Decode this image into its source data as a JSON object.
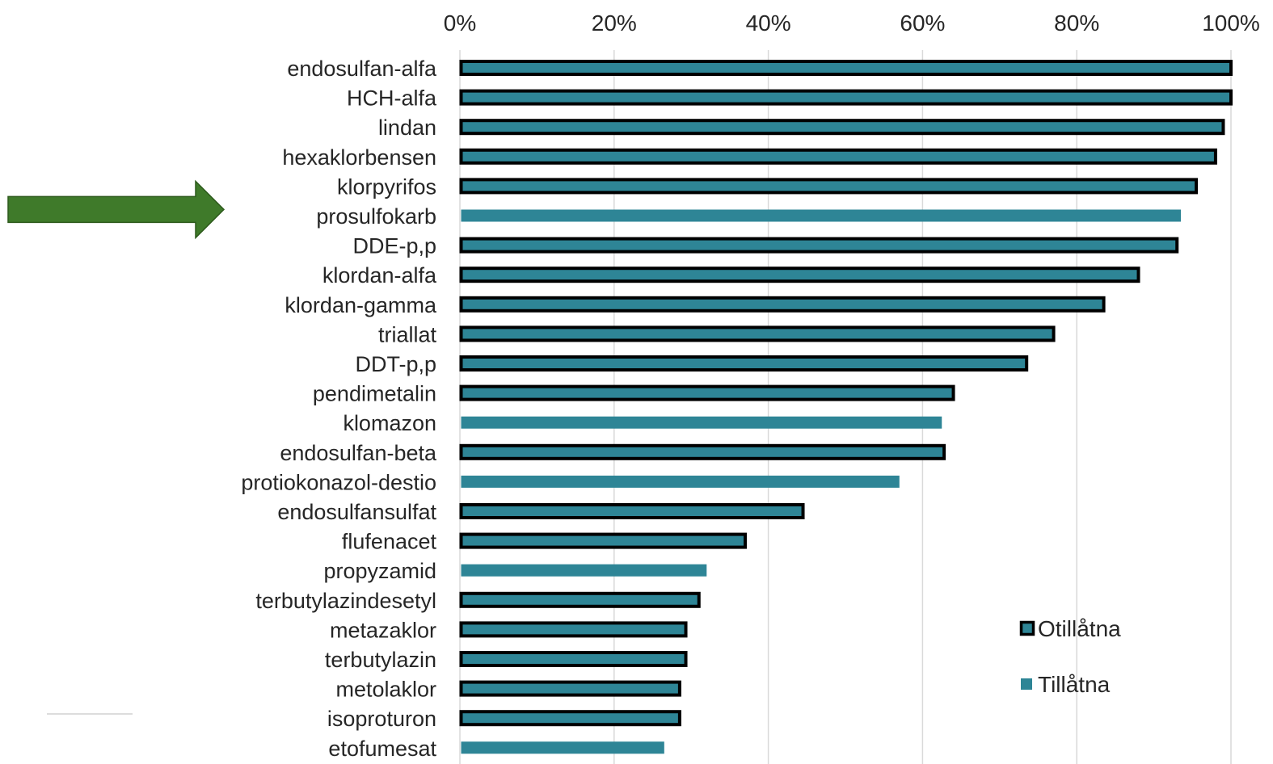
{
  "chart_data": {
    "type": "bar",
    "orientation": "horizontal",
    "title": "",
    "xlabel": "",
    "ylabel": "",
    "xlim": [
      0,
      100
    ],
    "x_ticks": [
      "0%",
      "20%",
      "40%",
      "60%",
      "80%",
      "100%"
    ],
    "x_axis_position": "top",
    "grid": "vertical",
    "legend_placement": "bottom-right",
    "categories": [
      "endosulfan-alfa",
      "HCH-alfa",
      "lindan",
      "hexaklorbensen",
      "klorpyrifos",
      "prosulfokarb",
      "DDE-p,p",
      "klordan-alfa",
      "klordan-gamma",
      "triallat",
      "DDT-p,p",
      "pendimetalin",
      "klomazon",
      "endosulfan-beta",
      "protiokonazol-destio",
      "endosulfansulfat",
      "flufenacet",
      "propyzamid",
      "terbutylazindesetyl",
      "metazaklor",
      "terbutylazin",
      "metolaklor",
      "isoproturon",
      "etofumesat"
    ],
    "values": [
      100,
      100,
      99,
      98,
      95.5,
      93.5,
      93,
      88,
      83.5,
      77,
      73.5,
      64,
      62.5,
      62.8,
      57,
      44.5,
      37,
      32,
      31,
      29.3,
      29.3,
      28.5,
      28.5,
      26.5
    ],
    "status": [
      "o",
      "o",
      "o",
      "o",
      "o",
      "t",
      "o",
      "o",
      "o",
      "o",
      "o",
      "o",
      "t",
      "o",
      "t",
      "o",
      "o",
      "t",
      "o",
      "o",
      "o",
      "o",
      "o",
      "t"
    ],
    "series": [
      {
        "key": "o",
        "name": "Otillåtna",
        "fill": "#2e8596",
        "stroke": "#000000"
      },
      {
        "key": "t",
        "name": "Tillåtna",
        "fill": "#2e8596",
        "stroke": "none"
      }
    ],
    "highlight_arrow": {
      "target": "klorpyrifos",
      "color": "#3f7a2a",
      "icon": "right-arrow-icon"
    }
  }
}
